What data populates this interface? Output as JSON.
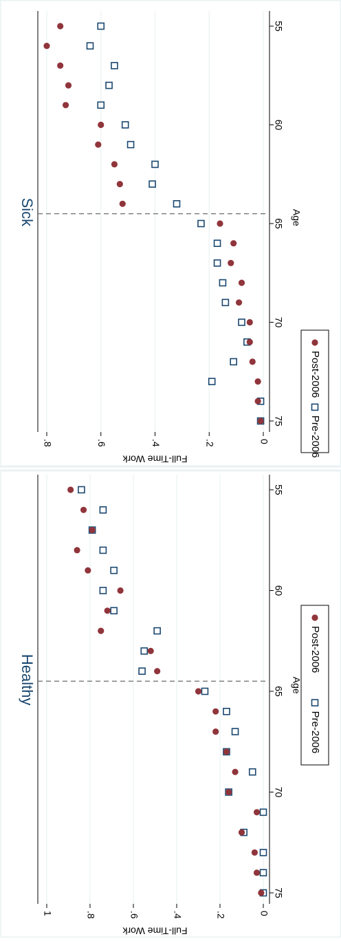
{
  "chart_data": [
    {
      "type": "scatter",
      "title": "Sick",
      "xlabel": "Age",
      "ylabel": "Full-Time Work",
      "xlim": [
        55,
        75
      ],
      "ylim": [
        0,
        0.8
      ],
      "x_ticks": [
        "55",
        "60",
        "65",
        "70",
        "75"
      ],
      "y_ticks": [
        "0",
        ".2",
        ".4",
        ".6",
        ".8"
      ],
      "grid": true,
      "reference_line": {
        "x": 64.5,
        "style": "dashed"
      },
      "legend_position": "bottom",
      "series": [
        {
          "name": "Pre-2006",
          "marker": "hollow-square",
          "color": "#1a476f",
          "x": [
            55,
            56,
            57,
            58,
            59,
            60,
            61,
            62,
            63,
            64,
            65,
            66,
            67,
            68,
            69,
            70,
            71,
            72,
            73,
            74,
            75
          ],
          "y": [
            0.6,
            0.64,
            0.55,
            0.57,
            0.6,
            0.51,
            0.49,
            0.4,
            0.41,
            0.32,
            0.23,
            0.17,
            0.17,
            0.15,
            0.14,
            0.08,
            0.06,
            0.11,
            0.19,
            0.01,
            0.01
          ]
        },
        {
          "name": "Post-2006",
          "marker": "filled-circle",
          "color": "#90353b",
          "x": [
            55,
            56,
            57,
            58,
            59,
            60,
            61,
            62,
            63,
            64,
            65,
            66,
            67,
            68,
            69,
            70,
            71,
            72,
            73,
            74,
            75
          ],
          "y": [
            0.75,
            0.8,
            0.75,
            0.72,
            0.73,
            0.6,
            0.61,
            0.55,
            0.53,
            0.52,
            0.16,
            0.11,
            0.12,
            0.08,
            0.09,
            0.05,
            0.05,
            0.04,
            0.02,
            0.02,
            0.01
          ]
        }
      ]
    },
    {
      "type": "scatter",
      "title": "Healthy",
      "xlabel": "Age",
      "ylabel": "Full-Time Work",
      "xlim": [
        55,
        75
      ],
      "ylim": [
        0,
        1
      ],
      "x_ticks": [
        "55",
        "60",
        "65",
        "70",
        "75"
      ],
      "y_ticks": [
        "0",
        ".2",
        ".4",
        ".6",
        ".8",
        "1"
      ],
      "grid": true,
      "reference_line": {
        "x": 64.5,
        "style": "dashed"
      },
      "legend_position": "bottom",
      "series": [
        {
          "name": "Pre-2006",
          "marker": "hollow-square",
          "color": "#1a476f",
          "x": [
            55,
            56,
            57,
            58,
            59,
            60,
            61,
            62,
            63,
            64,
            65,
            66,
            67,
            68,
            69,
            70,
            71,
            72,
            73,
            74,
            75
          ],
          "y": [
            0.84,
            0.74,
            0.79,
            0.74,
            0.69,
            0.74,
            0.69,
            0.49,
            0.55,
            0.56,
            0.27,
            0.17,
            0.13,
            0.17,
            0.05,
            0.16,
            0.0,
            0.09,
            0.0,
            0.0,
            0.0
          ]
        },
        {
          "name": "Post-2006",
          "marker": "filled-circle",
          "color": "#90353b",
          "x": [
            55,
            56,
            57,
            58,
            59,
            60,
            61,
            62,
            63,
            64,
            65,
            66,
            67,
            68,
            69,
            70,
            71,
            72,
            73,
            74,
            75
          ],
          "y": [
            0.89,
            0.83,
            0.79,
            0.86,
            0.81,
            0.66,
            0.72,
            0.75,
            0.52,
            0.49,
            0.3,
            0.22,
            0.22,
            0.17,
            0.13,
            0.16,
            0.03,
            0.1,
            0.04,
            0.03,
            0.01
          ]
        }
      ]
    }
  ]
}
